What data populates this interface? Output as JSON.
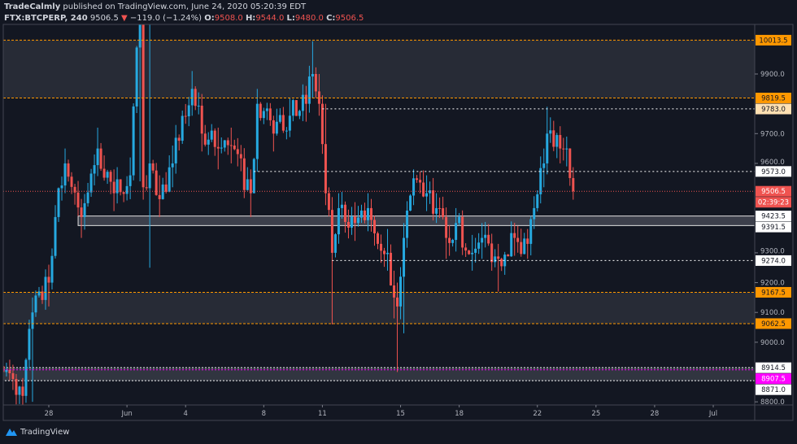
{
  "header": {
    "author": "TradeCalmly",
    "published": "published on TradingView.com, June 24, 2020 05:20:39 EDT",
    "symbol": "FTX:BTCPERP, 240",
    "last": "9506.5",
    "change": "−119.0 (−1.24%)",
    "o_label": "O:",
    "o": "9508.0",
    "h_label": "H:",
    "h": "9544.0",
    "l_label": "L:",
    "l": "9480.0",
    "c_label": "C:",
    "c": "9506.5"
  },
  "footer": {
    "brand": "TradingView"
  },
  "colors": {
    "background": "#131722",
    "up": "#26a9e0",
    "down": "#ef5350",
    "zone": "#ff9800",
    "highlight": "#ff00ff"
  },
  "chart_data": {
    "type": "candlestick",
    "interval": "240",
    "grid": false,
    "ylim": [
      8790,
      10050
    ],
    "y_ticks": [
      8800,
      9000,
      9100,
      9200,
      9300,
      9600,
      9700,
      9900
    ],
    "x_ticks": [
      {
        "date": "2020-05-28",
        "label": "28"
      },
      {
        "date": "2020-06-01",
        "label": "Jun"
      },
      {
        "date": "2020-06-04",
        "label": "4"
      },
      {
        "date": "2020-06-08",
        "label": "8"
      },
      {
        "date": "2020-06-11",
        "label": "11"
      },
      {
        "date": "2020-06-15",
        "label": "15"
      },
      {
        "date": "2020-06-18",
        "label": "18"
      },
      {
        "date": "2020-06-22",
        "label": "22"
      },
      {
        "date": "2020-06-25",
        "label": "25"
      },
      {
        "date": "2020-06-28",
        "label": "28"
      },
      {
        "date": "2020-07-01",
        "label": "Jul"
      }
    ],
    "xlim": [
      "2020-05-25T12:00",
      "2020-07-02T12:00"
    ],
    "price_path": [
      [
        "2020-05-25T12:00",
        8920,
        8960,
        8850
      ],
      [
        "2020-05-25T16:00",
        8900,
        8950,
        8830
      ],
      [
        "2020-05-26T16:00",
        8820,
        8880,
        8780
      ],
      [
        "2020-05-27T04:00",
        9100,
        9150,
        8800
      ],
      [
        "2020-05-28T00:00",
        9200,
        9260,
        9120
      ],
      [
        "2020-05-28T08:00",
        9420,
        9460,
        9300
      ],
      [
        "2020-05-28T20:00",
        9600,
        9650,
        9500
      ],
      [
        "2020-05-29T16:00",
        9420,
        9480,
        9350
      ],
      [
        "2020-05-30T12:00",
        9650,
        9720,
        9560
      ],
      [
        "2020-05-31T08:00",
        9500,
        9580,
        9440
      ],
      [
        "2020-06-01T04:00",
        9560,
        9620,
        9480
      ],
      [
        "2020-06-01T16:00",
        10150,
        10400,
        9540
      ],
      [
        "2020-06-01T20:00",
        9520,
        10100,
        9480
      ],
      [
        "2020-06-02T04:00",
        9600,
        10300,
        9250
      ],
      [
        "2020-06-02T16:00",
        9480,
        9560,
        9420
      ],
      [
        "2020-06-03T08:00",
        9600,
        9660,
        9520
      ],
      [
        "2020-06-04T08:00",
        9850,
        9910,
        9760
      ],
      [
        "2020-06-04T20:00",
        9700,
        9760,
        9640
      ],
      [
        "2020-06-05T16:00",
        9650,
        9720,
        9580
      ],
      [
        "2020-06-06T08:00",
        9660,
        9720,
        9600
      ],
      [
        "2020-06-07T08:00",
        9500,
        9580,
        9420
      ],
      [
        "2020-06-07T16:00",
        9800,
        9850,
        9700
      ],
      [
        "2020-06-08T12:00",
        9700,
        9760,
        9640
      ],
      [
        "2020-06-09T08:00",
        9760,
        9820,
        9700
      ],
      [
        "2020-06-10T04:00",
        9800,
        9860,
        9740
      ],
      [
        "2020-06-10T12:00",
        9900,
        10010,
        9820
      ],
      [
        "2020-06-10T20:00",
        9800,
        9900,
        9760
      ],
      [
        "2020-06-11T04:00",
        9500,
        9800,
        9460
      ],
      [
        "2020-06-11T12:00",
        9300,
        9380,
        9060
      ],
      [
        "2020-06-11T20:00",
        9450,
        9500,
        9380
      ],
      [
        "2020-06-12T16:00",
        9400,
        9470,
        9340
      ],
      [
        "2020-06-13T08:00",
        9450,
        9500,
        9400
      ],
      [
        "2020-06-14T08:00",
        9300,
        9380,
        9240
      ],
      [
        "2020-06-14T16:00",
        9150,
        9240,
        9080
      ],
      [
        "2020-06-14T20:00",
        9120,
        9200,
        8900
      ],
      [
        "2020-06-15T04:00",
        9350,
        9400,
        9030
      ],
      [
        "2020-06-15T16:00",
        9550,
        9580,
        9460
      ],
      [
        "2020-06-16T08:00",
        9500,
        9560,
        9440
      ],
      [
        "2020-06-16T20:00",
        9450,
        9500,
        9400
      ],
      [
        "2020-06-17T08:00",
        9350,
        9420,
        9280
      ],
      [
        "2020-06-17T20:00",
        9400,
        9450,
        9340
      ],
      [
        "2020-06-18T16:00",
        9300,
        9360,
        9240
      ],
      [
        "2020-06-19T04:00",
        9350,
        9400,
        9280
      ],
      [
        "2020-06-20T00:00",
        9280,
        9330,
        9170
      ],
      [
        "2020-06-20T20:00",
        9350,
        9400,
        9290
      ],
      [
        "2020-06-21T12:00",
        9330,
        9380,
        9280
      ],
      [
        "2020-06-21T20:00",
        9450,
        9490,
        9380
      ],
      [
        "2020-06-22T08:00",
        9600,
        9650,
        9520
      ],
      [
        "2020-06-22T12:00",
        9700,
        9790,
        9640
      ],
      [
        "2020-06-23T04:00",
        9650,
        9700,
        9600
      ],
      [
        "2020-06-23T12:00",
        9650,
        9690,
        9590
      ],
      [
        "2020-06-23T20:00",
        9506.5,
        9544,
        9480
      ]
    ],
    "price_path_columns": [
      "time",
      "close",
      "high",
      "low"
    ],
    "levels": [
      {
        "price": 10013.5,
        "label": "10013.5",
        "style": "zone-orange"
      },
      {
        "price": 9819.5,
        "label": "9819.5",
        "style": "zone-orange"
      },
      {
        "price": 9783.0,
        "label": "9783.0",
        "style": "dotted-white",
        "from": "2020-06-11"
      },
      {
        "price": 9573.0,
        "label": "9573.0",
        "style": "dotted-white",
        "from": "2020-06-07T12:00"
      },
      {
        "price": 9506.5,
        "label": "9506.5",
        "style": "last-price"
      },
      {
        "price": 9423.5,
        "label": "9423.5",
        "style": "box-white",
        "from": "2020-05-29T12:00"
      },
      {
        "price": 9391.5,
        "label": "9391.5",
        "style": "box-white",
        "from": "2020-05-29T12:00"
      },
      {
        "price": 9274.0,
        "label": "9274.0",
        "style": "dotted-white",
        "from": "2020-06-11T12:00"
      },
      {
        "price": 9167.5,
        "label": "9167.5",
        "style": "zone-orange"
      },
      {
        "price": 9062.5,
        "label": "9062.5",
        "style": "zone-orange"
      },
      {
        "price": 8914.5,
        "label": "8914.5",
        "style": "box-white"
      },
      {
        "price": 8907.5,
        "label": "8907.5",
        "style": "magenta"
      },
      {
        "price": 8871.0,
        "label": "8871.0",
        "style": "box-white"
      }
    ],
    "countdown": "02:39:23"
  }
}
